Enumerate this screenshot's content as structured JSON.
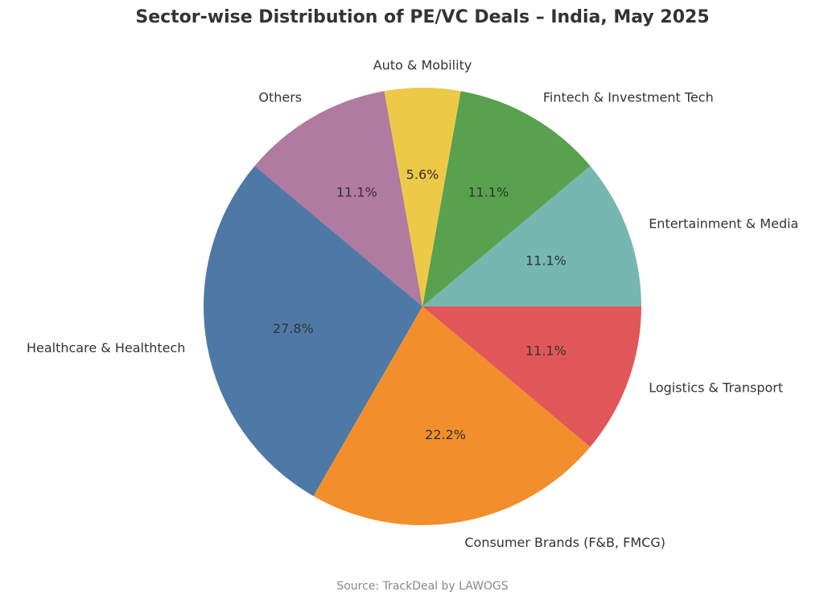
{
  "chart_data": {
    "type": "pie",
    "title": "Sector-wise Distribution of PE/VC Deals – India, May 2025",
    "source": "Source: TrackDeal by LAWOGS",
    "categories": [
      "Entertainment & Media",
      "Fintech & Investment Tech",
      "Auto & Mobility",
      "Others",
      "Healthcare & Healthtech",
      "Consumer Brands (F&B, FMCG)",
      "Logistics & Transport"
    ],
    "values": [
      11.1,
      11.1,
      5.6,
      11.1,
      27.8,
      22.2,
      11.1
    ],
    "value_labels": [
      "11.1%",
      "11.1%",
      "5.6%",
      "11.1%",
      "27.8%",
      "22.2%",
      "11.1%"
    ],
    "colors": [
      "#76b7b2",
      "#59a14f",
      "#edc948",
      "#b07aa1",
      "#4e79a7",
      "#f28e2b",
      "#e15759"
    ]
  }
}
